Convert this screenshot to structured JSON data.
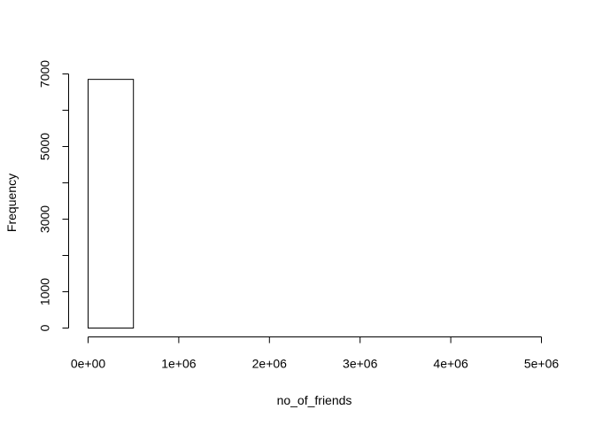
{
  "chart_data": {
    "type": "bar",
    "title": "",
    "xlabel": "no_of_friends",
    "ylabel": "Frequency",
    "bins": [
      [
        0,
        500000
      ],
      [
        500000,
        1000000
      ],
      [
        1000000,
        1500000
      ],
      [
        1500000,
        2000000
      ],
      [
        2000000,
        2500000
      ],
      [
        2500000,
        3000000
      ],
      [
        3000000,
        3500000
      ],
      [
        3500000,
        4000000
      ],
      [
        4000000,
        4500000
      ],
      [
        4500000,
        5000000
      ]
    ],
    "values": [
      6850,
      0,
      0,
      0,
      0,
      0,
      0,
      0,
      0,
      0
    ],
    "xlim": [
      0,
      5000000
    ],
    "ylim": [
      0,
      7000
    ],
    "x_ticks": [
      {
        "value": 0,
        "label": "0e+00"
      },
      {
        "value": 1000000,
        "label": "1e+06"
      },
      {
        "value": 2000000,
        "label": "2e+06"
      },
      {
        "value": 3000000,
        "label": "3e+06"
      },
      {
        "value": 4000000,
        "label": "4e+06"
      },
      {
        "value": 5000000,
        "label": "5e+06"
      }
    ],
    "y_ticks": [
      0,
      1000,
      2000,
      3000,
      4000,
      5000,
      6000,
      7000
    ],
    "y_tick_labels": [
      {
        "value": 0,
        "label": "0"
      },
      {
        "value": 1000,
        "label": "1000"
      },
      {
        "value": 3000,
        "label": "3000"
      },
      {
        "value": 5000,
        "label": "5000"
      },
      {
        "value": 7000,
        "label": "7000"
      }
    ],
    "grid": false,
    "colors": {
      "bar_fill": "#ffffff",
      "bar_stroke": "#000000",
      "axis": "#000000"
    }
  }
}
